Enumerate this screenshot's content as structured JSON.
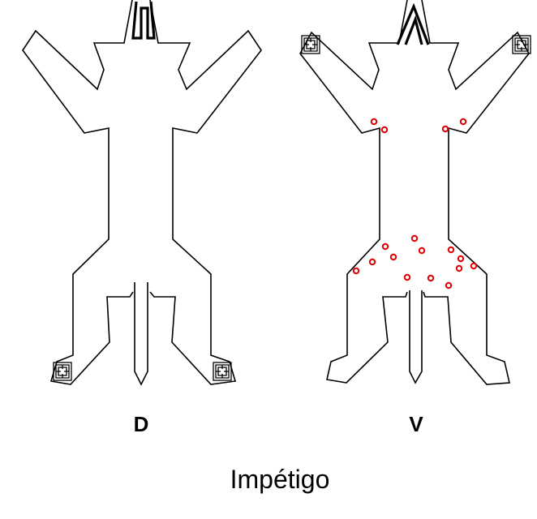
{
  "figure": {
    "dorsal_label": "D",
    "ventral_label": "V",
    "caption": "Impétigo"
  },
  "colors": {
    "outline": "#000000",
    "lesion": "#e00000",
    "background": "#ffffff"
  }
}
